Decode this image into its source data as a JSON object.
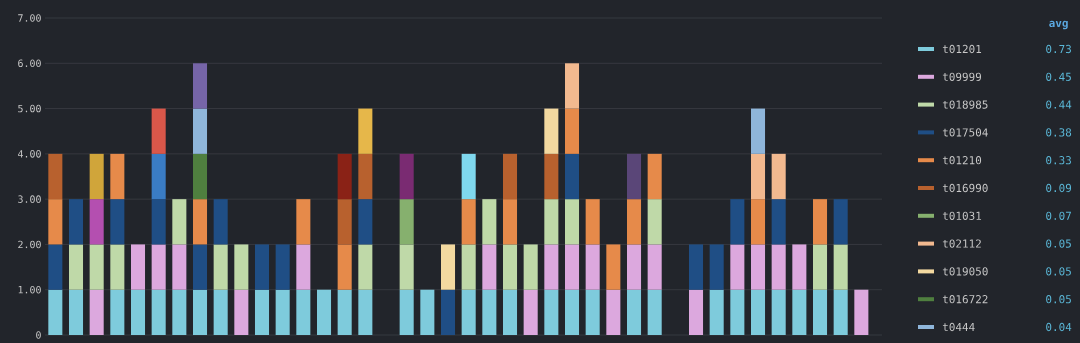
{
  "chart_data": {
    "type": "bar",
    "stacked": true,
    "grid": "y",
    "legend": "right",
    "legend_title": "avg",
    "categories": [
      null,
      null,
      null,
      null,
      null,
      null,
      null,
      null,
      null,
      null,
      null,
      null,
      null,
      null,
      null,
      null,
      null,
      null,
      null,
      null,
      null,
      null,
      null,
      null,
      null,
      null,
      null,
      null,
      null,
      null,
      null,
      null,
      null,
      null,
      null,
      null,
      null,
      null,
      null,
      null
    ],
    "ylim": [
      0,
      7
    ],
    "yticks": [
      {
        "value": 0,
        "label": "0"
      },
      {
        "value": 1,
        "label": "1.00"
      },
      {
        "value": 2,
        "label": "2.00"
      },
      {
        "value": 3,
        "label": "3.00"
      },
      {
        "value": 4,
        "label": "4.00"
      },
      {
        "value": 5,
        "label": "5.00"
      },
      {
        "value": 6,
        "label": "6.00"
      },
      {
        "value": 7,
        "label": "7.00"
      }
    ],
    "annotations": [
      "0.73",
      "0.45",
      "0.44",
      "0.38",
      "0.33",
      "0.09",
      "0.07",
      "0.05",
      "0.05",
      "0.05",
      "0.04"
    ],
    "series": [
      {
        "name": "t01201",
        "color": "#7ecbdc",
        "values": [
          1,
          1,
          null,
          1,
          1,
          1,
          1,
          1,
          1,
          null,
          1,
          1,
          1,
          1,
          1,
          1,
          null,
          1,
          1,
          null,
          1,
          1,
          1,
          null,
          1,
          1,
          1,
          null,
          1,
          1,
          null,
          null,
          1,
          1,
          1,
          1,
          1,
          1,
          1,
          null
        ]
      },
      {
        "name": "t09999",
        "color": "#dca8de",
        "values": [
          null,
          null,
          1,
          null,
          1,
          1,
          1,
          null,
          null,
          1,
          null,
          null,
          1,
          null,
          null,
          null,
          null,
          null,
          null,
          null,
          null,
          1,
          null,
          1,
          1,
          1,
          1,
          1,
          1,
          1,
          null,
          1,
          null,
          1,
          1,
          1,
          1,
          null,
          null,
          1
        ]
      },
      {
        "name": "t018985",
        "color": "#bfd9a8",
        "values": [
          null,
          1,
          1,
          1,
          null,
          null,
          1,
          null,
          1,
          1,
          null,
          null,
          null,
          null,
          null,
          1,
          null,
          1,
          null,
          null,
          1,
          1,
          1,
          1,
          1,
          1,
          null,
          null,
          null,
          1,
          null,
          null,
          null,
          null,
          null,
          null,
          null,
          1,
          1,
          null
        ]
      },
      {
        "name": "t017504",
        "color": "#1f4e85",
        "values": [
          1,
          1,
          null,
          1,
          null,
          1,
          null,
          1,
          1,
          null,
          1,
          1,
          null,
          null,
          null,
          1,
          null,
          null,
          null,
          1,
          null,
          null,
          null,
          null,
          null,
          1,
          null,
          null,
          null,
          null,
          null,
          1,
          1,
          1,
          null,
          1,
          null,
          null,
          1,
          null
        ]
      },
      {
        "name": "t01210",
        "color": "#e68a4a",
        "values": [
          1,
          null,
          null,
          1,
          null,
          null,
          null,
          1,
          null,
          null,
          null,
          null,
          1,
          null,
          1,
          null,
          null,
          null,
          null,
          null,
          1,
          null,
          1,
          null,
          null,
          1,
          1,
          1,
          1,
          1,
          null,
          null,
          null,
          null,
          1,
          null,
          null,
          1,
          null,
          null
        ]
      },
      {
        "name": "t016990",
        "color": "#b8612e",
        "values": [
          1,
          null,
          null,
          null,
          null,
          null,
          null,
          null,
          null,
          null,
          null,
          null,
          null,
          null,
          1,
          1,
          null,
          null,
          null,
          null,
          null,
          null,
          1,
          null,
          1,
          null,
          null,
          null,
          null,
          null,
          null,
          null,
          null,
          null,
          null,
          null,
          null,
          null,
          null,
          null
        ]
      },
      {
        "name": "t01031",
        "color": "#86b06e",
        "values": [
          null,
          null,
          null,
          null,
          null,
          null,
          null,
          null,
          null,
          null,
          null,
          null,
          null,
          null,
          null,
          null,
          null,
          1,
          null,
          null,
          null,
          null,
          null,
          null,
          null,
          null,
          null,
          null,
          null,
          null,
          null,
          null,
          null,
          null,
          null,
          null,
          null,
          null,
          null,
          null
        ]
      },
      {
        "name": "t02112",
        "color": "#f2b98f",
        "values": [
          null,
          null,
          null,
          null,
          null,
          null,
          null,
          null,
          null,
          null,
          null,
          null,
          null,
          null,
          null,
          null,
          null,
          null,
          null,
          null,
          null,
          null,
          null,
          null,
          null,
          1,
          null,
          null,
          null,
          null,
          null,
          null,
          null,
          null,
          1,
          1,
          null,
          null,
          null,
          null
        ]
      },
      {
        "name": "t019050",
        "color": "#f3d9a0",
        "values": [
          null,
          null,
          null,
          null,
          null,
          null,
          null,
          null,
          null,
          null,
          null,
          null,
          null,
          null,
          null,
          null,
          null,
          null,
          null,
          1,
          null,
          null,
          null,
          null,
          1,
          null,
          null,
          null,
          null,
          null,
          null,
          null,
          null,
          null,
          null,
          null,
          null,
          null,
          null,
          null
        ]
      },
      {
        "name": "t016722",
        "color": "#4f7f3f",
        "values": [
          null,
          null,
          null,
          null,
          null,
          null,
          null,
          1,
          null,
          null,
          null,
          null,
          null,
          null,
          null,
          null,
          null,
          null,
          null,
          null,
          null,
          null,
          null,
          null,
          null,
          null,
          null,
          null,
          null,
          null,
          null,
          null,
          null,
          null,
          null,
          null,
          null,
          null,
          null,
          null
        ]
      },
      {
        "name": "t0444",
        "color": "#8fb6da",
        "values": [
          null,
          null,
          null,
          null,
          null,
          null,
          null,
          1,
          null,
          null,
          null,
          null,
          null,
          null,
          null,
          null,
          null,
          null,
          null,
          null,
          null,
          null,
          null,
          null,
          null,
          null,
          null,
          null,
          null,
          null,
          null,
          null,
          null,
          null,
          1,
          null,
          null,
          null,
          null,
          null
        ]
      },
      {
        "color": "#b44fb0",
        "values": [
          null,
          null,
          1,
          null,
          null,
          null,
          null,
          null,
          null,
          null,
          null,
          null,
          null,
          null,
          null,
          null,
          null,
          null,
          null,
          null,
          null,
          null,
          null,
          null,
          null,
          null,
          null,
          null,
          null,
          null,
          null,
          null,
          null,
          null,
          null,
          null,
          null,
          null,
          null,
          null
        ]
      },
      {
        "color": "#d0a53a",
        "values": [
          null,
          null,
          1,
          null,
          null,
          null,
          null,
          null,
          null,
          null,
          null,
          null,
          null,
          null,
          null,
          null,
          null,
          null,
          null,
          null,
          null,
          null,
          null,
          null,
          null,
          null,
          null,
          null,
          null,
          null,
          null,
          null,
          null,
          null,
          null,
          null,
          null,
          null,
          null,
          null
        ]
      },
      {
        "color": "#3a7cc4",
        "values": [
          null,
          null,
          null,
          null,
          null,
          1,
          null,
          null,
          null,
          null,
          null,
          null,
          null,
          null,
          null,
          null,
          null,
          null,
          null,
          null,
          null,
          null,
          null,
          null,
          null,
          null,
          null,
          null,
          null,
          null,
          null,
          null,
          null,
          null,
          null,
          null,
          null,
          null,
          null,
          null
        ]
      },
      {
        "color": "#d9574a",
        "values": [
          null,
          null,
          null,
          null,
          null,
          1,
          null,
          null,
          null,
          null,
          null,
          null,
          null,
          null,
          null,
          null,
          null,
          null,
          null,
          null,
          null,
          null,
          null,
          null,
          null,
          null,
          null,
          null,
          null,
          null,
          null,
          null,
          null,
          null,
          null,
          null,
          null,
          null,
          null,
          null
        ]
      },
      {
        "color": "#7665a8",
        "values": [
          null,
          null,
          null,
          null,
          null,
          null,
          null,
          1,
          null,
          null,
          null,
          null,
          null,
          null,
          null,
          null,
          null,
          null,
          null,
          null,
          null,
          null,
          null,
          null,
          null,
          null,
          null,
          null,
          null,
          null,
          null,
          null,
          null,
          null,
          null,
          null,
          null,
          null,
          null,
          null
        ]
      },
      {
        "color": "#8a2216",
        "values": [
          null,
          null,
          null,
          null,
          null,
          null,
          null,
          null,
          null,
          null,
          null,
          null,
          null,
          null,
          1,
          null,
          null,
          null,
          null,
          null,
          null,
          null,
          null,
          null,
          null,
          null,
          null,
          null,
          null,
          null,
          null,
          null,
          null,
          null,
          null,
          null,
          null,
          null,
          null,
          null
        ]
      },
      {
        "color": "#e6b74a",
        "values": [
          null,
          null,
          null,
          null,
          null,
          null,
          null,
          null,
          null,
          null,
          null,
          null,
          null,
          null,
          null,
          1,
          null,
          null,
          null,
          null,
          null,
          null,
          null,
          null,
          null,
          null,
          null,
          null,
          null,
          null,
          null,
          null,
          null,
          null,
          null,
          null,
          null,
          null,
          null,
          null
        ]
      },
      {
        "color": "#7a2b72",
        "values": [
          null,
          null,
          null,
          null,
          null,
          null,
          null,
          null,
          null,
          null,
          null,
          null,
          null,
          null,
          null,
          null,
          null,
          1,
          null,
          null,
          null,
          null,
          null,
          null,
          null,
          null,
          null,
          null,
          null,
          null,
          null,
          null,
          null,
          null,
          null,
          null,
          null,
          null,
          null,
          null
        ]
      },
      {
        "color": "#7fd8ee",
        "values": [
          null,
          null,
          null,
          null,
          null,
          null,
          null,
          null,
          null,
          null,
          null,
          null,
          null,
          null,
          null,
          null,
          null,
          null,
          null,
          null,
          1,
          null,
          null,
          null,
          null,
          null,
          null,
          null,
          null,
          null,
          null,
          null,
          null,
          null,
          null,
          null,
          null,
          null,
          null,
          null
        ]
      },
      {
        "color": "#5a4678",
        "values": [
          null,
          null,
          null,
          null,
          null,
          null,
          null,
          null,
          null,
          null,
          null,
          null,
          null,
          null,
          null,
          null,
          null,
          null,
          null,
          null,
          null,
          null,
          null,
          null,
          null,
          null,
          null,
          null,
          1,
          null,
          null,
          null,
          null,
          null,
          null,
          null,
          null,
          null,
          null,
          null
        ]
      }
    ]
  }
}
